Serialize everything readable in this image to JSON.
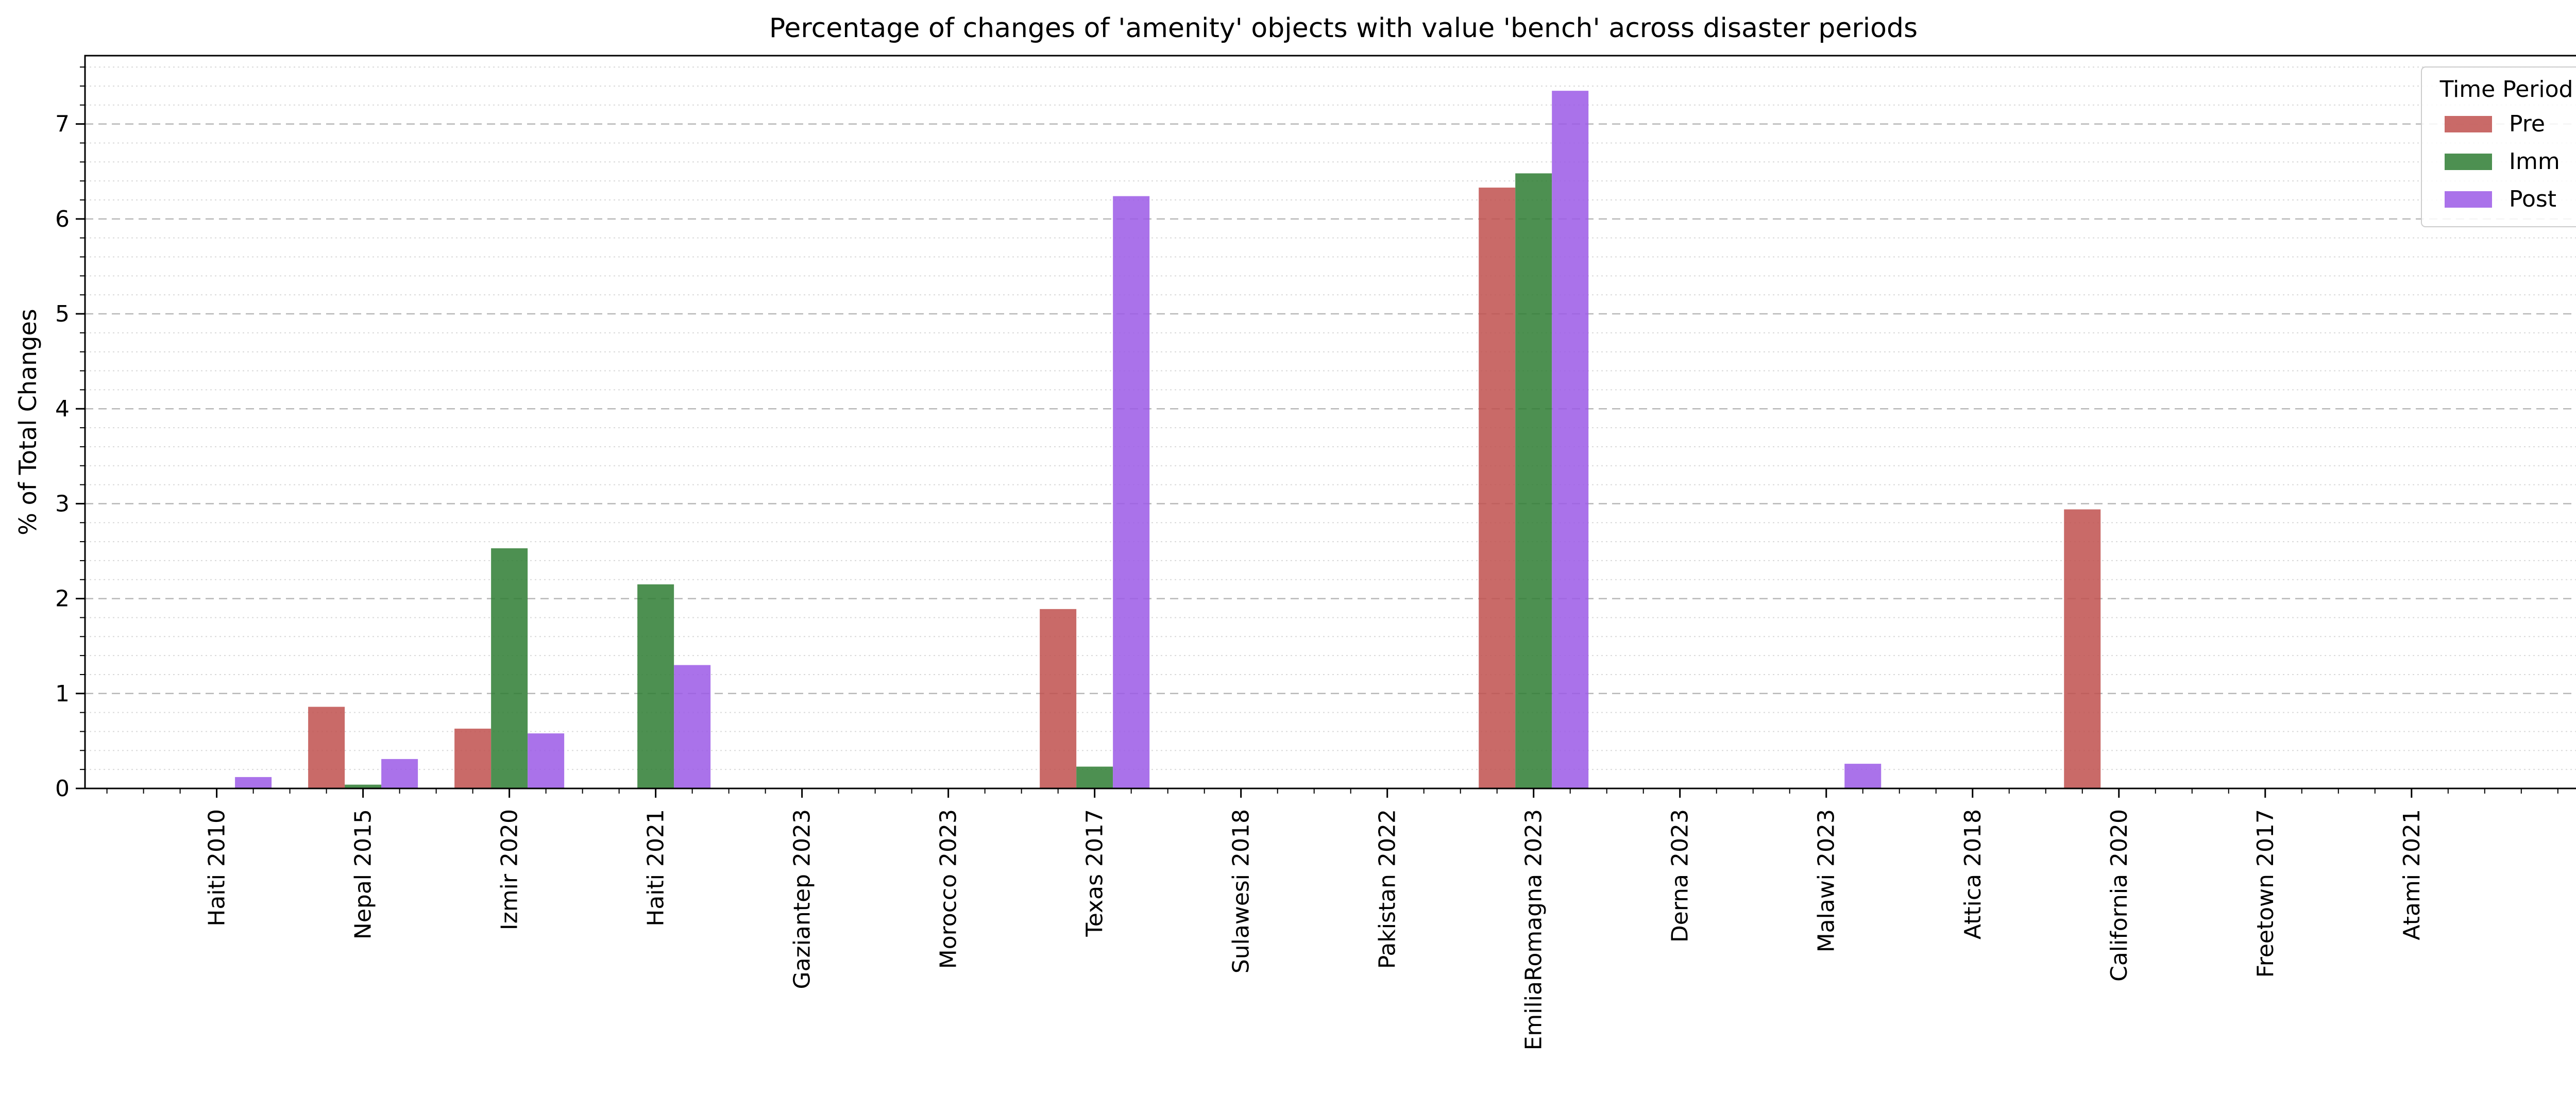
{
  "chart_data": {
    "type": "bar",
    "title": "Percentage of changes of 'amenity' objects with value 'bench' across disaster periods",
    "xlabel": "",
    "ylabel": "% of Total Changes",
    "ylim": [
      0,
      7.72
    ],
    "yticks": [
      0,
      1,
      2,
      3,
      4,
      5,
      6,
      7
    ],
    "grid": "major dashed, minor dotted (y axis)",
    "categories": [
      "Haiti 2010",
      "Nepal 2015",
      "Izmir 2020",
      "Haiti 2021",
      "Gaziantep 2023",
      "Morocco 2023",
      "Texas 2017",
      "Sulawesi 2018",
      "Pakistan 2022",
      "EmiliaRomagna 2023",
      "Derna 2023",
      "Malawi 2023",
      "Attica 2018",
      "California 2020",
      "Freetown 2017",
      "Atami 2021"
    ],
    "series": [
      {
        "name": "Pre",
        "color": "#c0504d",
        "values": [
          0,
          0.86,
          0.63,
          0,
          0,
          0,
          1.89,
          0,
          0,
          6.33,
          0,
          0,
          0,
          2.94,
          0,
          0
        ]
      },
      {
        "name": "Imm",
        "color": "#2e7d32",
        "values": [
          0,
          0.04,
          2.53,
          2.15,
          0,
          0,
          0.23,
          0,
          0,
          6.48,
          0,
          0,
          0,
          0,
          0,
          0
        ]
      },
      {
        "name": "Post",
        "color": "#9b59e6",
        "values": [
          0.12,
          0.31,
          0.58,
          1.3,
          0,
          0,
          6.24,
          0,
          0,
          7.35,
          0,
          0.26,
          0,
          0,
          0,
          0
        ]
      }
    ],
    "legend": {
      "title": "Time Period",
      "placement": "top-right"
    }
  }
}
